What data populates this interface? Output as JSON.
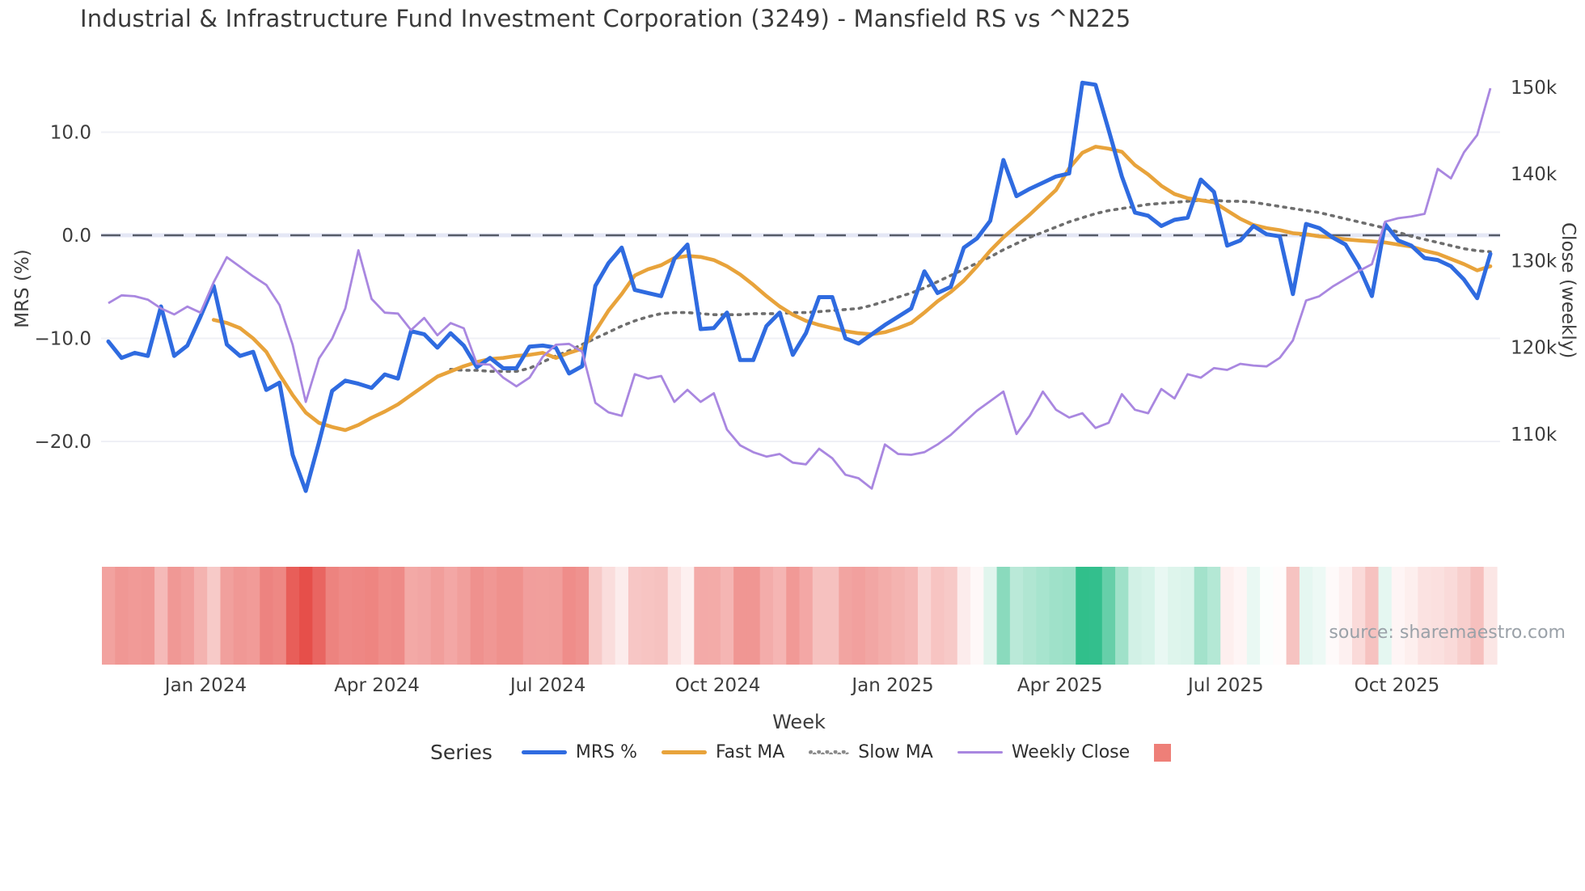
{
  "title": "Industrial & Infrastructure Fund Investment Corporation (3249) - Mansfield RS vs ^N225",
  "source": {
    "text": "source: sharemaestro.com"
  },
  "axes": {
    "left": {
      "label": "MRS (%)",
      "ticks": [
        {
          "value": 10,
          "label": "10.0"
        },
        {
          "value": 0,
          "label": "0.0"
        },
        {
          "value": -10,
          "label": "−10.0"
        },
        {
          "value": -20,
          "label": "−20.0"
        }
      ]
    },
    "right": {
      "label": "Close (weekly)",
      "ticks": [
        {
          "value": 150,
          "label": "150k"
        },
        {
          "value": 140,
          "label": "140k"
        },
        {
          "value": 130,
          "label": "130k"
        },
        {
          "value": 120,
          "label": "120k"
        },
        {
          "value": 110,
          "label": "110k"
        }
      ]
    },
    "bottom": {
      "label": "Week",
      "tick_labels": [
        "Jan 2024",
        "Apr 2024",
        "Jul 2024",
        "Oct 2024",
        "Jan 2025",
        "Apr 2025",
        "Jul 2025",
        "Oct 2025"
      ],
      "tick_week_index": [
        7.4,
        20.4,
        33.4,
        46.3,
        59.6,
        72.3,
        84.9,
        97.9
      ]
    }
  },
  "legend": {
    "title": "Series",
    "items": [
      {
        "id": "mrs",
        "label": "MRS %",
        "color": "#2f6be0",
        "style": "solid"
      },
      {
        "id": "fast-ma",
        "label": "Fast MA",
        "color": "#e8a33b",
        "style": "solid"
      },
      {
        "id": "slow-ma",
        "label": "Slow MA",
        "color": "#8a8a8a",
        "style": "dotted"
      },
      {
        "id": "weekly-close",
        "label": "Weekly Close",
        "color": "#a987e0",
        "style": "thin"
      }
    ],
    "heatmap_patch_color": "#ee7f78"
  },
  "colors": {
    "mrs": "#2f6be0",
    "fast_ma": "#e8a33b",
    "slow_ma": "#6e6e6e",
    "weekly_close": "#a987e0",
    "zero_line": "#565b68",
    "zero_line_halo": "#e4e7f5",
    "grid": "#eff0f6",
    "heat_negative": "#e64f4a",
    "heat_positive": "#2fbe8a",
    "tick_text": "#3d3d3d"
  },
  "chart_data": {
    "type": "line",
    "x_unit": "week-index",
    "n_weeks": 106,
    "left_axis_range": [
      -27,
      13
    ],
    "right_axis_range_k": [
      103,
      152
    ],
    "grid": true,
    "zero_reference_line": 0,
    "series": [
      {
        "name": "MRS %",
        "axis": "left",
        "values": [
          -10.3,
          -11.9,
          -11.4,
          -11.7,
          -6.9,
          -11.7,
          -10.7,
          -7.9,
          -4.9,
          -10.6,
          -11.7,
          -11.3,
          -15.0,
          -14.3,
          -21.3,
          -24.8,
          -20.1,
          -15.1,
          -14.1,
          -14.4,
          -14.8,
          -13.5,
          -13.9,
          -9.3,
          -9.6,
          -10.9,
          -9.5,
          -10.7,
          -12.8,
          -11.9,
          -12.9,
          -12.9,
          -10.8,
          -10.7,
          -10.9,
          -13.4,
          -12.7,
          -4.9,
          -2.7,
          -1.2,
          -5.3,
          -5.6,
          -5.9,
          -2.3,
          -0.9,
          -9.1,
          -9.0,
          -7.5,
          -12.1,
          -12.1,
          -8.8,
          -7.5,
          -11.6,
          -9.5,
          -6.0,
          -6.0,
          -10.0,
          -10.5,
          -9.6,
          -8.7,
          -7.9,
          -7.1,
          -3.5,
          -5.6,
          -5.0,
          -1.2,
          -0.3,
          1.4,
          7.3,
          3.8,
          4.5,
          5.1,
          5.7,
          6.0,
          14.8,
          14.6,
          10.2,
          5.7,
          2.2,
          1.9,
          0.9,
          1.5,
          1.7,
          5.4,
          4.2,
          -1.0,
          -0.5,
          0.9,
          0.1,
          -0.1,
          -5.7,
          1.1,
          0.7,
          -0.2,
          -0.9,
          -3.0,
          -5.9,
          1.1,
          -0.5,
          -1.0,
          -2.2,
          -2.4,
          -3.0,
          -4.3,
          -6.1,
          -1.8
        ]
      },
      {
        "name": "Fast MA",
        "axis": "left",
        "values": [
          null,
          null,
          null,
          null,
          null,
          null,
          null,
          null,
          -8.2,
          -8.5,
          -9.0,
          -10.0,
          -11.3,
          -13.5,
          -15.5,
          -17.2,
          -18.2,
          -18.6,
          -18.9,
          -18.4,
          -17.7,
          -17.1,
          -16.4,
          -15.5,
          -14.6,
          -13.7,
          -13.2,
          -12.7,
          -12.3,
          -12.0,
          -11.9,
          -11.7,
          -11.6,
          -11.4,
          -11.9,
          -11.4,
          -11.0,
          -9.3,
          -7.3,
          -5.7,
          -3.9,
          -3.3,
          -2.9,
          -2.2,
          -2.0,
          -2.1,
          -2.4,
          -3.0,
          -3.8,
          -4.8,
          -5.9,
          -6.9,
          -7.7,
          -8.3,
          -8.7,
          -9.0,
          -9.3,
          -9.5,
          -9.6,
          -9.4,
          -9.0,
          -8.5,
          -7.5,
          -6.4,
          -5.5,
          -4.4,
          -3.0,
          -1.5,
          -0.2,
          0.9,
          2.0,
          3.2,
          4.4,
          6.5,
          8.0,
          8.6,
          8.4,
          8.1,
          6.8,
          5.9,
          4.8,
          4.0,
          3.6,
          3.4,
          3.2,
          2.4,
          1.6,
          1.0,
          0.7,
          0.5,
          0.2,
          0.1,
          -0.1,
          -0.2,
          -0.4,
          -0.5,
          -0.6,
          -0.7,
          -0.9,
          -1.1,
          -1.5,
          -1.8,
          -2.3,
          -2.8,
          -3.4,
          -3.0
        ]
      },
      {
        "name": "Slow MA",
        "axis": "left",
        "values": [
          null,
          null,
          null,
          null,
          null,
          null,
          null,
          null,
          null,
          null,
          null,
          null,
          null,
          null,
          null,
          null,
          null,
          null,
          null,
          null,
          null,
          null,
          null,
          null,
          null,
          null,
          -13.0,
          -13.1,
          -13.1,
          -13.2,
          -13.2,
          -13.2,
          -12.9,
          -12.3,
          -11.7,
          -11.2,
          -10.6,
          -10.0,
          -9.4,
          -8.8,
          -8.3,
          -7.9,
          -7.6,
          -7.5,
          -7.5,
          -7.6,
          -7.7,
          -7.7,
          -7.7,
          -7.6,
          -7.6,
          -7.6,
          -7.5,
          -7.5,
          -7.4,
          -7.3,
          -7.2,
          -7.1,
          -6.8,
          -6.4,
          -6.0,
          -5.6,
          -5.1,
          -4.5,
          -3.9,
          -3.3,
          -2.7,
          -2.1,
          -1.4,
          -0.8,
          -0.2,
          0.3,
          0.8,
          1.3,
          1.7,
          2.1,
          2.4,
          2.6,
          2.8,
          3.0,
          3.1,
          3.2,
          3.3,
          3.4,
          3.4,
          3.3,
          3.3,
          3.2,
          3.0,
          2.8,
          2.6,
          2.4,
          2.2,
          1.9,
          1.6,
          1.3,
          1.0,
          0.7,
          0.3,
          -0.1,
          -0.4,
          -0.7,
          -1.0,
          -1.3,
          -1.5,
          -1.6
        ]
      },
      {
        "name": "Weekly Close",
        "axis": "right",
        "unit": "thousand",
        "values": [
          125.1,
          126.0,
          125.9,
          125.5,
          124.5,
          123.8,
          124.7,
          124.0,
          127.5,
          130.4,
          129.3,
          128.2,
          127.2,
          124.9,
          120.3,
          113.7,
          118.7,
          121.0,
          124.5,
          131.2,
          125.6,
          124.0,
          123.9,
          122.0,
          123.4,
          121.4,
          122.8,
          122.2,
          118.1,
          118.0,
          116.5,
          115.5,
          116.5,
          118.9,
          120.3,
          120.4,
          119.5,
          113.6,
          112.5,
          112.1,
          116.9,
          116.4,
          116.7,
          113.7,
          115.1,
          113.7,
          114.7,
          110.5,
          108.7,
          107.9,
          107.4,
          107.7,
          106.7,
          106.5,
          108.3,
          107.2,
          105.3,
          104.9,
          103.7,
          108.8,
          107.7,
          107.6,
          107.9,
          108.8,
          109.9,
          111.3,
          112.7,
          113.8,
          114.9,
          110.0,
          112.1,
          114.9,
          112.8,
          111.9,
          112.4,
          110.7,
          111.3,
          114.6,
          112.8,
          112.4,
          115.2,
          114.1,
          116.9,
          116.5,
          117.6,
          117.4,
          118.1,
          117.9,
          117.8,
          118.8,
          120.8,
          125.4,
          125.9,
          127.0,
          127.9,
          128.8,
          129.6,
          134.5,
          134.9,
          135.1,
          135.4,
          140.6,
          139.5,
          142.5,
          144.5,
          149.9
        ]
      }
    ],
    "heatmap_strip": {
      "description": "weekly cells colored by MRS value, red negative to green positive",
      "source_series": "MRS %",
      "negative_color": "#e64f4a",
      "positive_color": "#2fbe8a"
    }
  }
}
